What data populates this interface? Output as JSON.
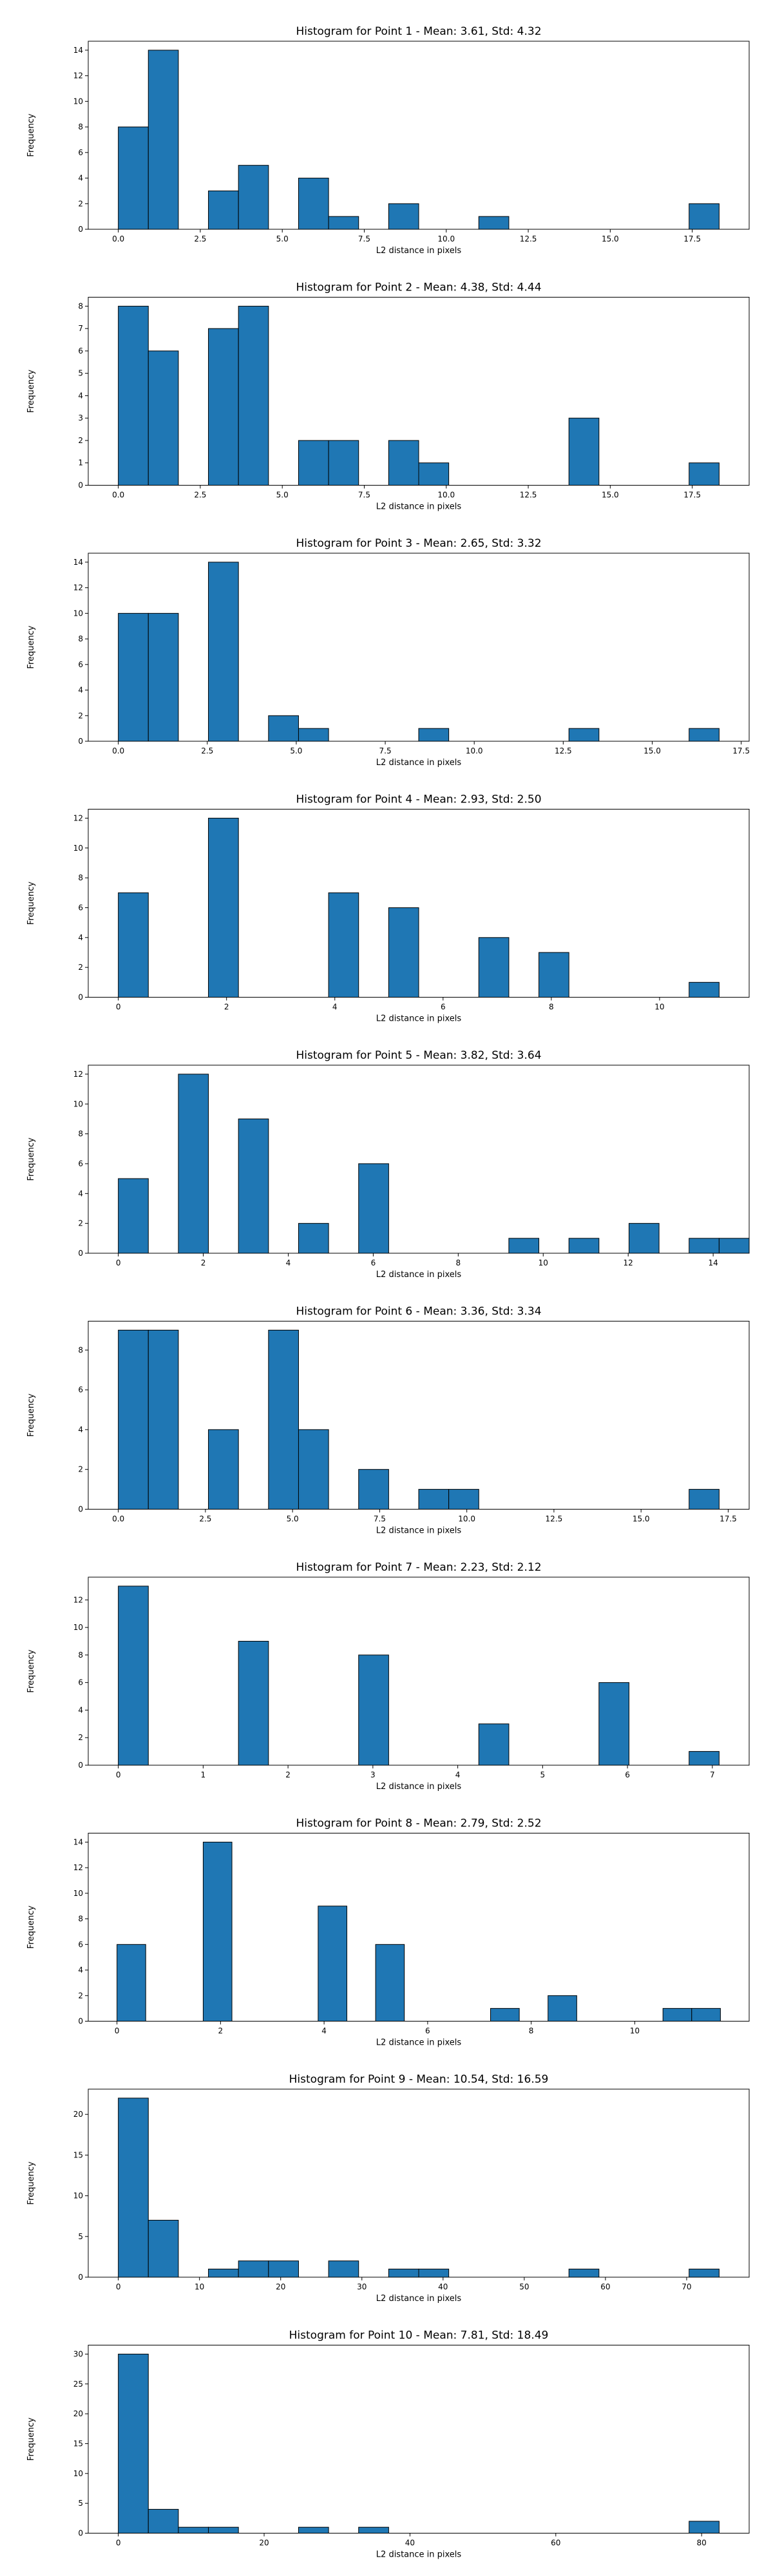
{
  "chart_data": [
    {
      "type": "bar",
      "title": "Histogram for Point 1 - Mean: 3.61, Std: 4.32",
      "xlabel": "L2 distance in pixels",
      "ylabel": "Frequency",
      "bin_start": 0,
      "bin_width": 0.916,
      "values": [
        8,
        14,
        0,
        3,
        5,
        0,
        4,
        1,
        0,
        2,
        0,
        0,
        1,
        0,
        0,
        0,
        0,
        0,
        0,
        2
      ],
      "xlim": [
        -0.916,
        19.236
      ],
      "ylim": [
        0,
        14.7
      ],
      "xticks": [
        0,
        2.5,
        5,
        7.5,
        10,
        12.5,
        15,
        17.5
      ],
      "xticklabels": [
        "0.0",
        "2.5",
        "5.0",
        "7.5",
        "10.0",
        "12.5",
        "15.0",
        "17.5"
      ],
      "yticks": [
        0,
        2,
        4,
        6,
        8,
        10,
        12,
        14
      ],
      "yticklabels": [
        "0",
        "2",
        "4",
        "6",
        "8",
        "10",
        "12",
        "14"
      ]
    },
    {
      "type": "bar",
      "title": "Histogram for Point 2 - Mean: 4.38, Std: 4.44",
      "xlabel": "L2 distance in pixels",
      "ylabel": "Frequency",
      "bin_start": 0,
      "bin_width": 0.916,
      "values": [
        8,
        6,
        0,
        7,
        8,
        0,
        2,
        2,
        0,
        2,
        1,
        0,
        0,
        0,
        0,
        3,
        0,
        0,
        0,
        1
      ],
      "xlim": [
        -0.916,
        19.236
      ],
      "ylim": [
        0,
        8.4
      ],
      "xticks": [
        0,
        2.5,
        5,
        7.5,
        10,
        12.5,
        15,
        17.5
      ],
      "xticklabels": [
        "0.0",
        "2.5",
        "5.0",
        "7.5",
        "10.0",
        "12.5",
        "15.0",
        "17.5"
      ],
      "yticks": [
        0,
        1,
        2,
        3,
        4,
        5,
        6,
        7,
        8
      ],
      "yticklabels": [
        "0",
        "1",
        "2",
        "3",
        "4",
        "5",
        "6",
        "7",
        "8"
      ]
    },
    {
      "type": "bar",
      "title": "Histogram for Point 3 - Mean: 2.65, Std: 3.32",
      "xlabel": "L2 distance in pixels",
      "ylabel": "Frequency",
      "bin_start": 0,
      "bin_width": 0.844,
      "values": [
        10,
        10,
        0,
        14,
        0,
        2,
        1,
        0,
        0,
        0,
        1,
        0,
        0,
        0,
        0,
        1,
        0,
        0,
        0,
        1
      ],
      "xlim": [
        -0.844,
        17.724
      ],
      "ylim": [
        0,
        14.7
      ],
      "xticks": [
        0,
        2.5,
        5,
        7.5,
        10,
        12.5,
        15,
        17.5
      ],
      "xticklabels": [
        "0.0",
        "2.5",
        "5.0",
        "7.5",
        "10.0",
        "12.5",
        "15.0",
        "17.5"
      ],
      "yticks": [
        0,
        2,
        4,
        6,
        8,
        10,
        12,
        14
      ],
      "yticklabels": [
        "0",
        "2",
        "4",
        "6",
        "8",
        "10",
        "12",
        "14"
      ]
    },
    {
      "type": "bar",
      "title": "Histogram for Point 4 - Mean: 2.93, Std: 2.50",
      "xlabel": "L2 distance in pixels",
      "ylabel": "Frequency",
      "bin_start": 0,
      "bin_width": 0.555,
      "values": [
        7,
        0,
        0,
        12,
        0,
        0,
        0,
        7,
        0,
        6,
        0,
        0,
        4,
        0,
        3,
        0,
        0,
        0,
        0,
        1
      ],
      "xlim": [
        -0.555,
        11.655
      ],
      "ylim": [
        0,
        12.6
      ],
      "xticks": [
        0,
        2,
        4,
        6,
        8,
        10
      ],
      "xticklabels": [
        "0",
        "2",
        "4",
        "6",
        "8",
        "10"
      ],
      "yticks": [
        0,
        2,
        4,
        6,
        8,
        10,
        12
      ],
      "yticklabels": [
        "0",
        "2",
        "4",
        "6",
        "8",
        "10",
        "12"
      ]
    },
    {
      "type": "bar",
      "title": "Histogram for Point 5 - Mean: 3.82, Std: 3.64",
      "xlabel": "L2 distance in pixels",
      "ylabel": "Frequency",
      "bin_start": 0,
      "bin_width": 0.707,
      "values": [
        5,
        0,
        12,
        0,
        9,
        0,
        2,
        0,
        6,
        0,
        0,
        0,
        0,
        1,
        0,
        1,
        0,
        2,
        0,
        1,
        1
      ],
      "xlim": [
        -0.707,
        14.847
      ],
      "ylim": [
        0,
        12.6
      ],
      "xticks": [
        0,
        2,
        4,
        6,
        8,
        10,
        12,
        14
      ],
      "xticklabels": [
        "0",
        "2",
        "4",
        "6",
        "8",
        "10",
        "12",
        "14"
      ],
      "yticks": [
        0,
        2,
        4,
        6,
        8,
        10,
        12
      ],
      "yticklabels": [
        "0",
        "2",
        "4",
        "6",
        "8",
        "10",
        "12"
      ]
    },
    {
      "type": "bar",
      "title": "Histogram for Point 6 - Mean: 3.36, Std: 3.34",
      "xlabel": "L2 distance in pixels",
      "ylabel": "Frequency",
      "bin_start": 0,
      "bin_width": 0.862,
      "values": [
        9,
        9,
        0,
        4,
        0,
        9,
        4,
        0,
        2,
        0,
        1,
        1,
        0,
        0,
        0,
        0,
        0,
        0,
        0,
        1
      ],
      "xlim": [
        -0.862,
        18.102
      ],
      "ylim": [
        0,
        9.45
      ],
      "xticks": [
        0,
        2.5,
        5,
        7.5,
        10,
        12.5,
        15,
        17.5
      ],
      "xticklabels": [
        "0.0",
        "2.5",
        "5.0",
        "7.5",
        "10.0",
        "12.5",
        "15.0",
        "17.5"
      ],
      "yticks": [
        0,
        2,
        4,
        6,
        8
      ],
      "yticklabels": [
        "0",
        "2",
        "4",
        "6",
        "8"
      ]
    },
    {
      "type": "bar",
      "title": "Histogram for Point 7 - Mean: 2.23, Std: 2.12",
      "xlabel": "L2 distance in pixels",
      "ylabel": "Frequency",
      "bin_start": 0,
      "bin_width": 0.354,
      "values": [
        13,
        0,
        0,
        0,
        9,
        0,
        0,
        0,
        8,
        0,
        0,
        0,
        3,
        0,
        0,
        0,
        6,
        0,
        0,
        1
      ],
      "xlim": [
        -0.354,
        7.434
      ],
      "ylim": [
        0,
        13.65
      ],
      "xticks": [
        0,
        1,
        2,
        3,
        4,
        5,
        6,
        7
      ],
      "xticklabels": [
        "0",
        "1",
        "2",
        "3",
        "4",
        "5",
        "6",
        "7"
      ],
      "yticks": [
        0,
        2,
        4,
        6,
        8,
        10,
        12
      ],
      "yticklabels": [
        "0",
        "2",
        "4",
        "6",
        "8",
        "10",
        "12"
      ]
    },
    {
      "type": "bar",
      "title": "Histogram for Point 8 - Mean: 2.79, Std: 2.52",
      "xlabel": "L2 distance in pixels",
      "ylabel": "Frequency",
      "bin_start": 0,
      "bin_width": 0.555,
      "values": [
        6,
        0,
        0,
        14,
        0,
        0,
        0,
        9,
        0,
        6,
        0,
        0,
        0,
        1,
        0,
        2,
        0,
        0,
        0,
        1,
        1
      ],
      "xlim": [
        -0.555,
        12.21
      ],
      "ylim": [
        0,
        14.7
      ],
      "xticks": [
        0,
        2,
        4,
        6,
        8,
        10
      ],
      "xticklabels": [
        "0",
        "2",
        "4",
        "6",
        "8",
        "10"
      ],
      "yticks": [
        0,
        2,
        4,
        6,
        8,
        10,
        12,
        14
      ],
      "yticklabels": [
        "0",
        "2",
        "4",
        "6",
        "8",
        "10",
        "12",
        "14"
      ]
    },
    {
      "type": "bar",
      "title": "Histogram for Point 9 - Mean: 10.54, Std: 16.59",
      "xlabel": "L2 distance in pixels",
      "ylabel": "Frequency",
      "bin_start": 0,
      "bin_width": 3.7,
      "values": [
        22,
        7,
        0,
        1,
        2,
        2,
        0,
        2,
        0,
        1,
        1,
        0,
        0,
        0,
        0,
        1,
        0,
        0,
        0,
        1
      ],
      "xlim": [
        -3.7,
        77.7
      ],
      "ylim": [
        0,
        23.1
      ],
      "xticks": [
        0,
        10,
        20,
        30,
        40,
        50,
        60,
        70
      ],
      "xticklabels": [
        "0",
        "10",
        "20",
        "30",
        "40",
        "50",
        "60",
        "70"
      ],
      "yticks": [
        0,
        5,
        10,
        15,
        20
      ],
      "yticklabels": [
        "0",
        "5",
        "10",
        "15",
        "20"
      ]
    },
    {
      "type": "bar",
      "title": "Histogram for Point 10 - Mean: 7.81, Std: 18.49",
      "xlabel": "L2 distance in pixels",
      "ylabel": "Frequency",
      "bin_start": 0,
      "bin_width": 4.12,
      "values": [
        30,
        4,
        1,
        1,
        0,
        0,
        1,
        0,
        1,
        0,
        0,
        0,
        0,
        0,
        0,
        0,
        0,
        0,
        0,
        2
      ],
      "xlim": [
        -4.12,
        86.52
      ],
      "ylim": [
        0,
        31.5
      ],
      "xticks": [
        0,
        20,
        40,
        60,
        80
      ],
      "xticklabels": [
        "0",
        "20",
        "40",
        "60",
        "80"
      ],
      "yticks": [
        0,
        5,
        10,
        15,
        20,
        25,
        30
      ],
      "yticklabels": [
        "0",
        "5",
        "10",
        "15",
        "20",
        "25",
        "30"
      ]
    }
  ]
}
